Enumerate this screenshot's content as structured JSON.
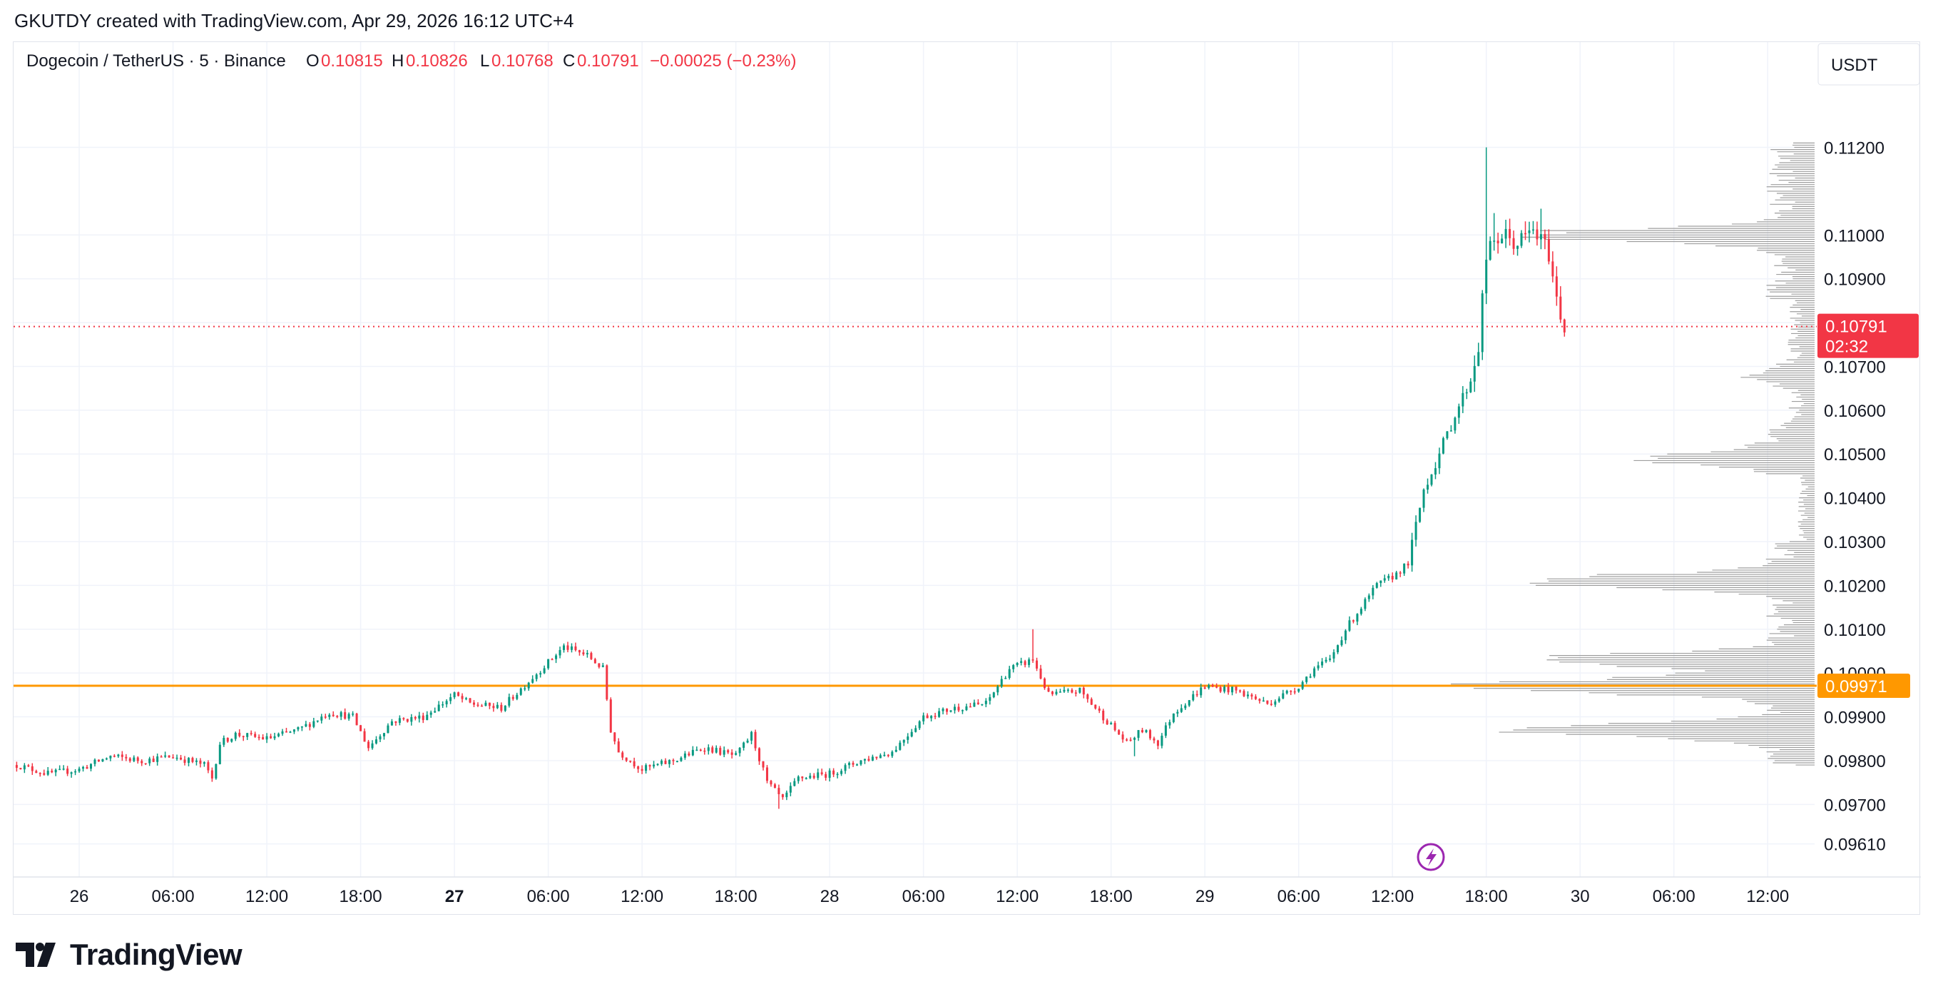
{
  "header": {
    "text": "GKUTDY created with TradingView.com, Apr 29, 2026 16:12 UTC+4"
  },
  "legend": {
    "symbol": "Dogecoin / TetherUS · 5 · Binance",
    "o_label": "O",
    "o_value": "0.10815",
    "h_label": "H",
    "h_value": "0.10826",
    "l_label": "L",
    "l_value": "0.10768",
    "c_label": "C",
    "c_value": "0.10791",
    "change": "−0.00025 (−0.23%)"
  },
  "currency_button": "USDT",
  "footer": {
    "brand": "TradingView"
  },
  "colors": {
    "up": "#089981",
    "down": "#f23645",
    "level": "#ff9800",
    "volume_profile": "#9e9e9e",
    "grid": "#f0f3fa",
    "event_icon": "#9c27b0"
  },
  "chart_data": {
    "type": "candlestick",
    "symbol": "DOGE/USDT",
    "interval": "5",
    "y_axis": {
      "ticks": [
        0.112,
        0.11,
        0.109,
        0.108,
        0.107,
        0.106,
        0.105,
        0.104,
        0.103,
        0.102,
        0.101,
        0.1,
        0.099,
        0.098,
        0.097,
        0.0961
      ],
      "tick_labels": [
        "0.11200",
        "0.11000",
        "0.10900",
        "0.10800",
        "0.10700",
        "0.10600",
        "0.10500",
        "0.10400",
        "0.10300",
        "0.10200",
        "0.10100",
        "0.10000",
        "0.09900",
        "0.09800",
        "0.09700",
        "0.09610"
      ],
      "range": [
        0.0958,
        0.1131
      ]
    },
    "x_axis": {
      "range_hours": [
        -4.2,
        111.0
      ],
      "ticks": [
        {
          "label": "26",
          "hour": 0,
          "bold": false
        },
        {
          "label": "06:00",
          "hour": 6,
          "bold": false
        },
        {
          "label": "12:00",
          "hour": 12,
          "bold": false
        },
        {
          "label": "18:00",
          "hour": 18,
          "bold": false
        },
        {
          "label": "27",
          "hour": 24,
          "bold": true
        },
        {
          "label": "06:00",
          "hour": 30,
          "bold": false
        },
        {
          "label": "12:00",
          "hour": 36,
          "bold": false
        },
        {
          "label": "18:00",
          "hour": 42,
          "bold": false
        },
        {
          "label": "28",
          "hour": 48,
          "bold": false
        },
        {
          "label": "06:00",
          "hour": 54,
          "bold": false
        },
        {
          "label": "12:00",
          "hour": 60,
          "bold": false
        },
        {
          "label": "18:00",
          "hour": 66,
          "bold": false
        },
        {
          "label": "29",
          "hour": 72,
          "bold": false
        },
        {
          "label": "06:00",
          "hour": 78,
          "bold": false
        },
        {
          "label": "12:00",
          "hour": 84,
          "bold": false
        },
        {
          "label": "18:00",
          "hour": 90,
          "bold": false
        },
        {
          "label": "30",
          "hour": 96,
          "bold": false
        },
        {
          "label": "06:00",
          "hour": 102,
          "bold": false
        },
        {
          "label": "12:00",
          "hour": 108,
          "bold": false
        }
      ]
    },
    "last_price": {
      "value": 0.10791,
      "label": "0.10791",
      "countdown": "02:32"
    },
    "level_line": {
      "value": 0.09971,
      "label": "0.09971"
    },
    "price_path": [
      [
        -4.0,
        0.0979
      ],
      [
        -2.0,
        0.0977
      ],
      [
        0.0,
        0.0978
      ],
      [
        2.0,
        0.0981
      ],
      [
        4.0,
        0.098
      ],
      [
        6.0,
        0.0981
      ],
      [
        8.0,
        0.0979
      ],
      [
        8.5,
        0.0976
      ],
      [
        9.0,
        0.0984
      ],
      [
        10.0,
        0.0986
      ],
      [
        12.0,
        0.0985
      ],
      [
        14.0,
        0.0987
      ],
      [
        16.0,
        0.0991
      ],
      [
        17.5,
        0.099
      ],
      [
        18.5,
        0.0983
      ],
      [
        20.0,
        0.0989
      ],
      [
        22.0,
        0.099
      ],
      [
        24.0,
        0.0995
      ],
      [
        25.0,
        0.0993
      ],
      [
        27.0,
        0.0992
      ],
      [
        29.0,
        0.0999
      ],
      [
        31.0,
        0.1006
      ],
      [
        32.5,
        0.1004
      ],
      [
        33.5,
        0.1001
      ],
      [
        34.0,
        0.0987
      ],
      [
        34.5,
        0.0982
      ],
      [
        36.0,
        0.0978
      ],
      [
        38.0,
        0.098
      ],
      [
        40.0,
        0.0983
      ],
      [
        42.0,
        0.0981
      ],
      [
        43.0,
        0.0986
      ],
      [
        44.0,
        0.0975
      ],
      [
        45.0,
        0.0971
      ],
      [
        46.0,
        0.0976
      ],
      [
        48.0,
        0.0977
      ],
      [
        50.0,
        0.098
      ],
      [
        52.0,
        0.0982
      ],
      [
        54.0,
        0.099
      ],
      [
        56.0,
        0.0992
      ],
      [
        58.0,
        0.0993
      ],
      [
        59.5,
        0.1001
      ],
      [
        61.0,
        0.1003
      ],
      [
        62.0,
        0.0995
      ],
      [
        64.0,
        0.0996
      ],
      [
        66.0,
        0.0988
      ],
      [
        67.0,
        0.0984
      ],
      [
        68.0,
        0.0987
      ],
      [
        69.0,
        0.0984
      ],
      [
        70.0,
        0.0991
      ],
      [
        72.0,
        0.0997
      ],
      [
        74.0,
        0.0996
      ],
      [
        76.0,
        0.0993
      ],
      [
        78.0,
        0.0997
      ],
      [
        79.0,
        0.1001
      ],
      [
        80.0,
        0.1003
      ],
      [
        81.0,
        0.101
      ],
      [
        82.0,
        0.1015
      ],
      [
        83.0,
        0.102
      ],
      [
        84.0,
        0.1022
      ],
      [
        85.0,
        0.1025
      ],
      [
        86.0,
        0.1042
      ],
      [
        87.0,
        0.105
      ],
      [
        88.0,
        0.1059
      ],
      [
        89.0,
        0.1067
      ],
      [
        89.5,
        0.1075
      ],
      [
        90.0,
        0.1095
      ],
      [
        90.5,
        0.1098
      ],
      [
        91.0,
        0.11
      ],
      [
        92.0,
        0.1098
      ],
      [
        93.0,
        0.1101
      ],
      [
        94.0,
        0.1096
      ],
      [
        94.5,
        0.1085
      ],
      [
        95.0,
        0.1079
      ]
    ],
    "spikes": [
      {
        "hour": 90.05,
        "high": 0.112
      },
      {
        "hour": 61.1,
        "high": 0.101
      },
      {
        "hour": 90.6,
        "high": 0.1105
      },
      {
        "hour": 93.6,
        "high": 0.1106
      },
      {
        "hour": 44.7,
        "low": 0.0969
      },
      {
        "hour": 67.5,
        "low": 0.0981
      }
    ],
    "volume_profile_peaks": [
      {
        "price": 0.11,
        "weight": 0.78
      },
      {
        "price": 0.1021,
        "weight": 0.8
      },
      {
        "price": 0.1003,
        "weight": 0.74
      },
      {
        "price": 0.0997,
        "weight": 0.95
      },
      {
        "price": 0.0987,
        "weight": 0.78
      },
      {
        "price": 0.1049,
        "weight": 0.4
      },
      {
        "price": 0.1068,
        "weight": 0.28
      }
    ]
  }
}
